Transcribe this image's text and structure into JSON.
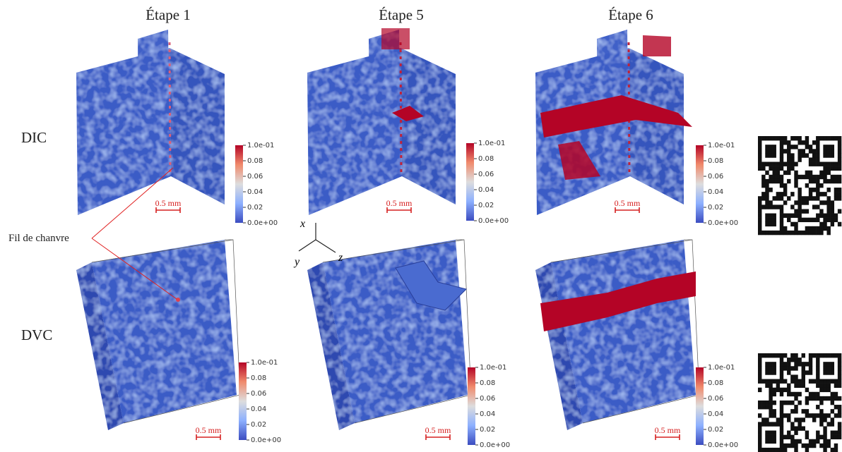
{
  "header": {
    "columns": [
      "Étape 1",
      "Étape 5",
      "Étape 6"
    ]
  },
  "rows": [
    "DIC",
    "DVC"
  ],
  "annotation": "Fil de chanvre",
  "scale_bar_label": "0.5 mm",
  "colorbar_ticks": [
    "1.0e-01",
    "0.08",
    "0.06",
    "0.04",
    "0.02",
    "0.0e+00"
  ],
  "axes_labels": {
    "x": "x⃗",
    "y": "y⃗",
    "z": "z⃗"
  }
}
